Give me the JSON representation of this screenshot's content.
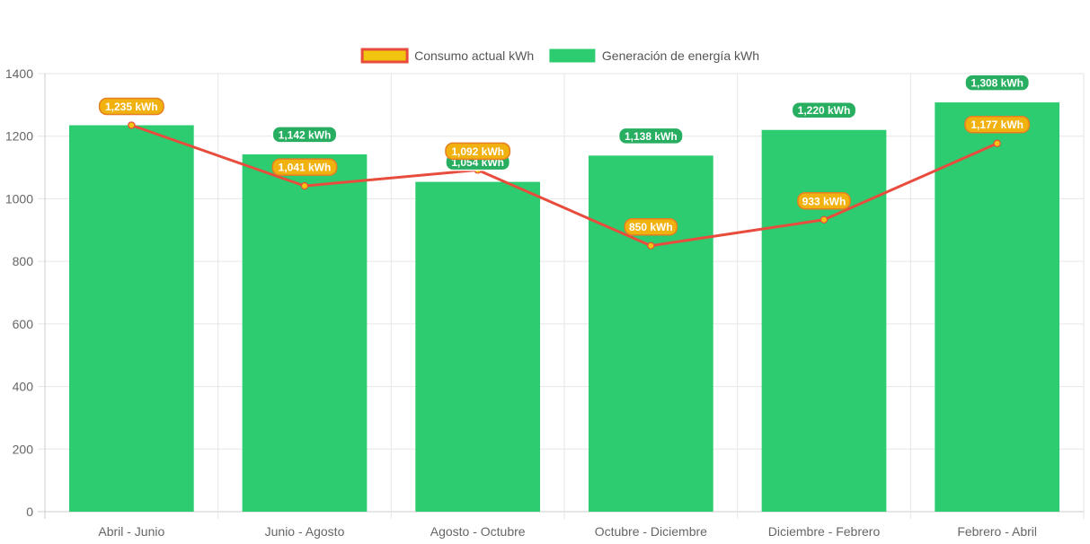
{
  "chart_data": {
    "type": "bar",
    "categories": [
      "Abril - Junio",
      "Junio - Agosto",
      "Agosto - Octubre",
      "Octubre - Diciembre",
      "Diciembre - Febrero",
      "Febrero - Abril"
    ],
    "series": [
      {
        "name": "Generación de energía kWh",
        "type": "bar",
        "color": "#2ecc71",
        "values": [
          1235,
          1142,
          1054,
          1138,
          1220,
          1308
        ],
        "labels": [
          "",
          "1,142 kWh",
          "1,054 kWh",
          "1,138 kWh",
          "1,220 kWh",
          "1,308 kWh"
        ]
      },
      {
        "name": "Consumo actual kWh",
        "type": "line",
        "color": "#e74c3c",
        "point_color": "#f1c40f",
        "values": [
          1235,
          1041,
          1092,
          850,
          933,
          1177
        ],
        "labels": [
          "1,235 kWh",
          "1,041 kWh",
          "1,092 kWh",
          "850 kWh",
          "933 kWh",
          "1,177 kWh"
        ]
      }
    ],
    "legend": [
      {
        "label": "Consumo actual kWh",
        "fill": "#f1c40f",
        "stroke": "#e74c3c"
      },
      {
        "label": "Generación de energía kWh",
        "fill": "#2ecc71",
        "stroke": "#2ecc71"
      }
    ],
    "y_ticks": [
      "0",
      "200",
      "400",
      "600",
      "800",
      "1000",
      "1200",
      "1400"
    ],
    "ylim": [
      0,
      1400
    ],
    "grid": true,
    "legend_position": "top"
  }
}
